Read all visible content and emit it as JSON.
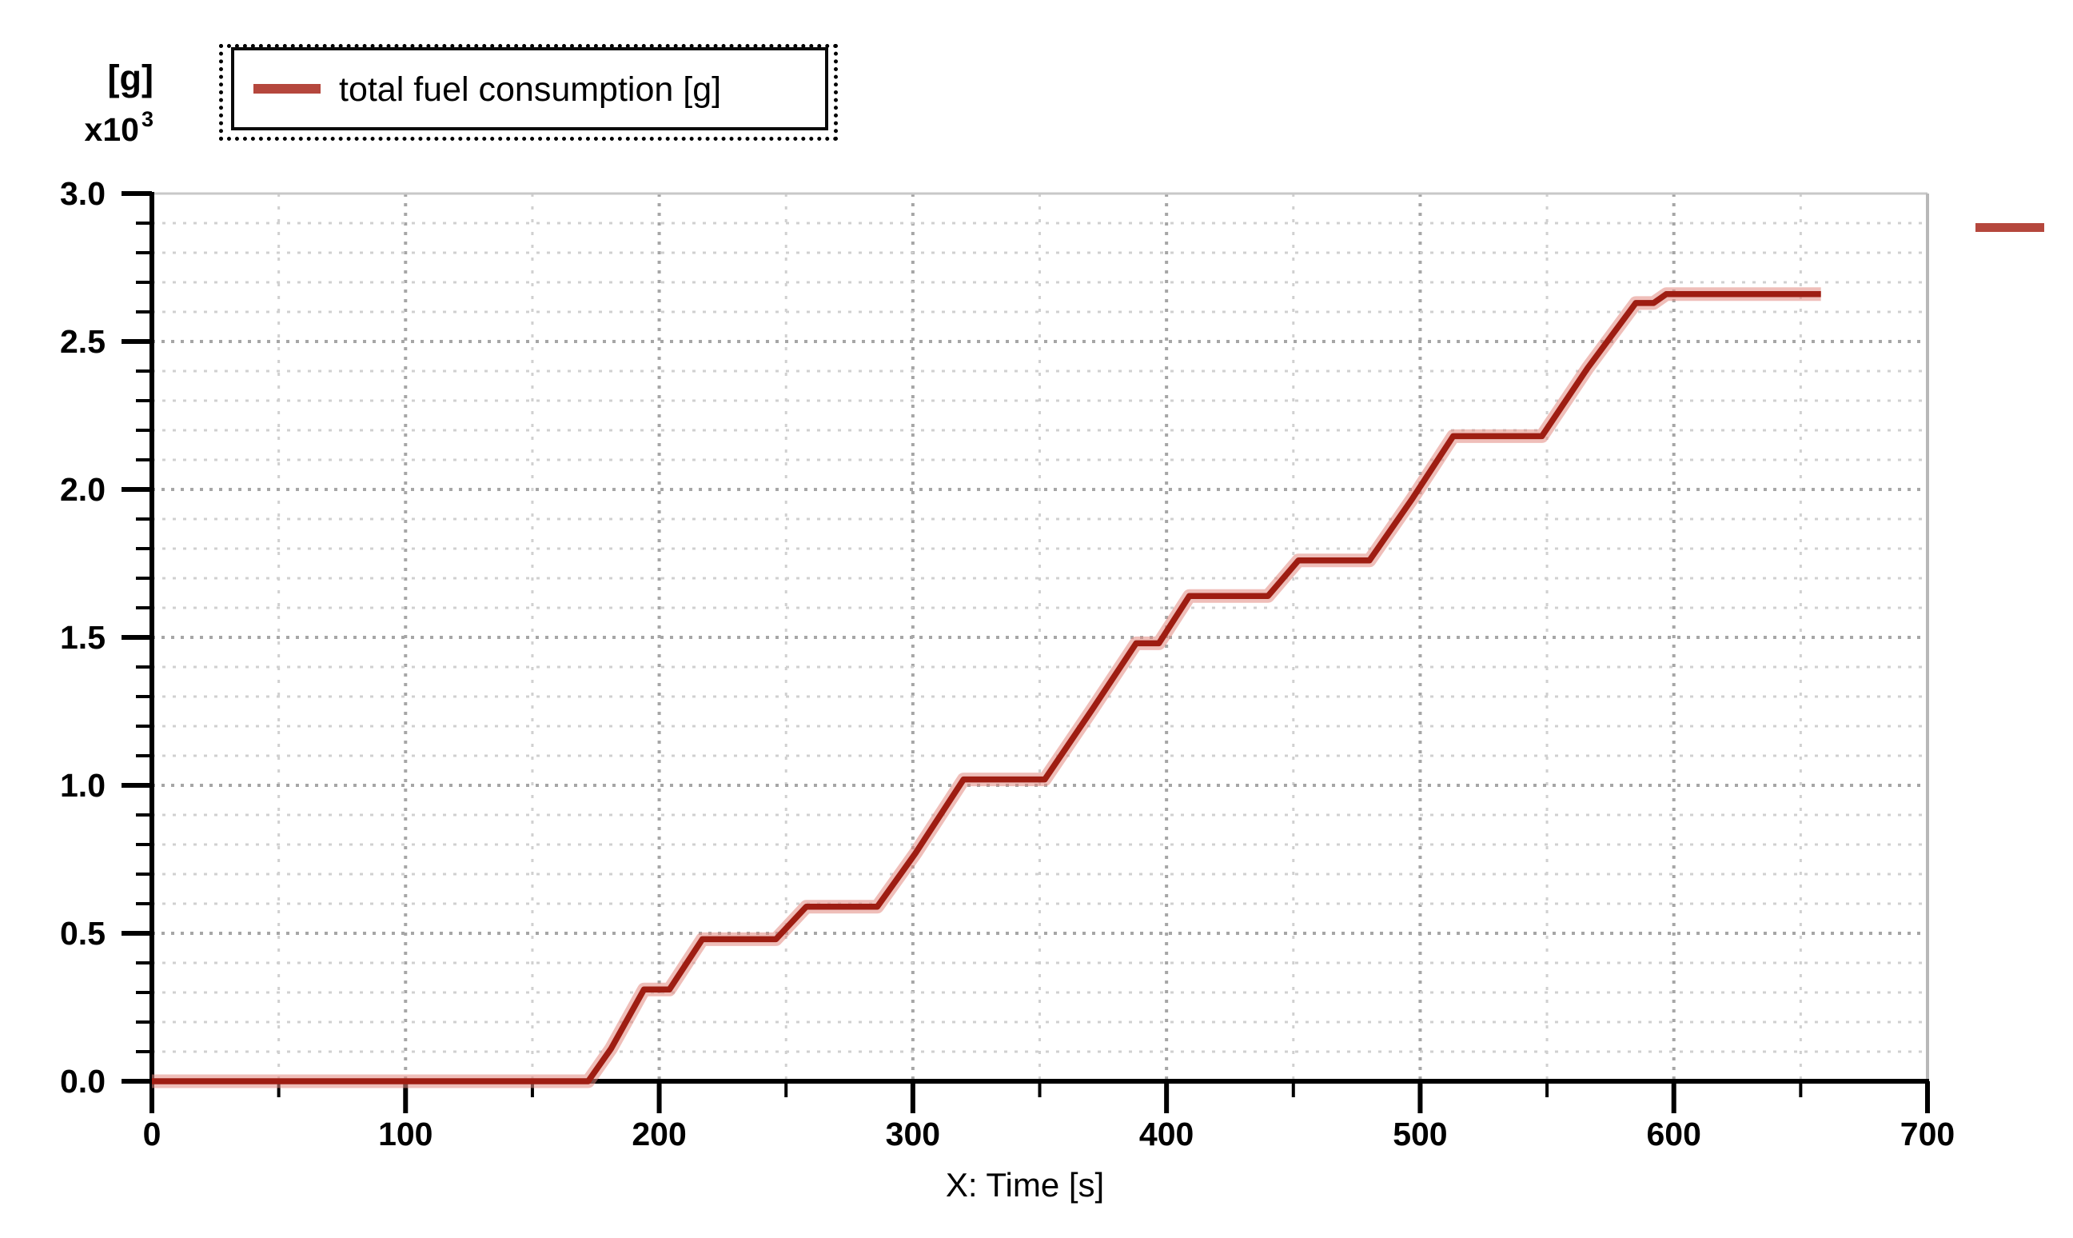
{
  "header": {
    "y_unit": "[g]",
    "y_multiplier_base": "x10",
    "y_multiplier_exp": "3"
  },
  "legend": {
    "label": "total fuel consumption [g]"
  },
  "xaxis": {
    "title": "X: Time [s]",
    "tick_labels": [
      "0",
      "100",
      "200",
      "300",
      "400",
      "500",
      "600",
      "700"
    ]
  },
  "yaxis": {
    "tick_labels": [
      "0.0",
      "0.5",
      "1.0",
      "1.5",
      "2.0",
      "2.5",
      "3.0"
    ]
  },
  "colors": {
    "line_core": "#9e1d12",
    "line_halo": "rgba(225,137,127,0.55)",
    "legend_swatch": "#b5473d",
    "grid_minor": "#d0d0d0",
    "grid_major": "#a6a6a6",
    "border_top": "#c8c8c8",
    "border_right": "#b8b8b8",
    "axis": "#000000"
  },
  "chart_data": {
    "type": "line",
    "title": "",
    "xlabel": "X: Time [s]",
    "ylabel": "[g] x10^3",
    "xlim": [
      0,
      700
    ],
    "ylim": [
      0,
      3.0
    ],
    "x_major_step": 100,
    "x_minor_step": 50,
    "y_major_step": 0.5,
    "y_minor_step": 0.1,
    "grid": "dotted, minor and major",
    "legend_position": "top-left",
    "series": [
      {
        "name": "total fuel consumption [g]",
        "units": "g x10^3",
        "points": [
          [
            0,
            0
          ],
          [
            172,
            0
          ],
          [
            181,
            0.11
          ],
          [
            194,
            0.31
          ],
          [
            204,
            0.31
          ],
          [
            217,
            0.48
          ],
          [
            246,
            0.48
          ],
          [
            258,
            0.59
          ],
          [
            286,
            0.59
          ],
          [
            301,
            0.77
          ],
          [
            320,
            1.02
          ],
          [
            352,
            1.02
          ],
          [
            371,
            1.26
          ],
          [
            388,
            1.48
          ],
          [
            397,
            1.48
          ],
          [
            409,
            1.64
          ],
          [
            440,
            1.64
          ],
          [
            452,
            1.76
          ],
          [
            480,
            1.76
          ],
          [
            497,
            1.97
          ],
          [
            513,
            2.18
          ],
          [
            548,
            2.18
          ],
          [
            566,
            2.41
          ],
          [
            585,
            2.63
          ],
          [
            592,
            2.63
          ],
          [
            597,
            2.66
          ],
          [
            658,
            2.66
          ]
        ]
      }
    ]
  }
}
